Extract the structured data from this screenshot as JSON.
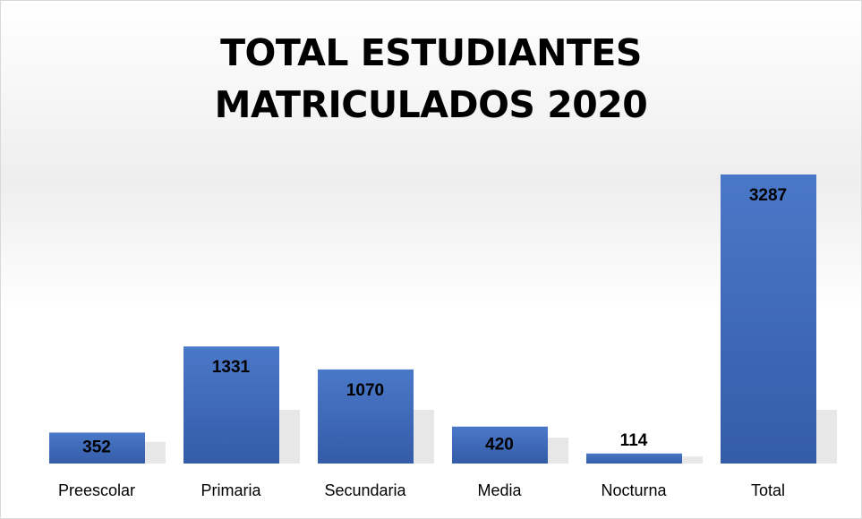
{
  "chart_data": {
    "type": "bar",
    "title": "TOTAL ESTUDIANTES MATRICULADOS 2020",
    "categories": [
      "Preescolar",
      "Primaria",
      "Secundaria",
      "Media",
      "Nocturna",
      "Total"
    ],
    "values": [
      352,
      1331,
      1070,
      420,
      114,
      3287
    ],
    "color": "#4472c4"
  }
}
